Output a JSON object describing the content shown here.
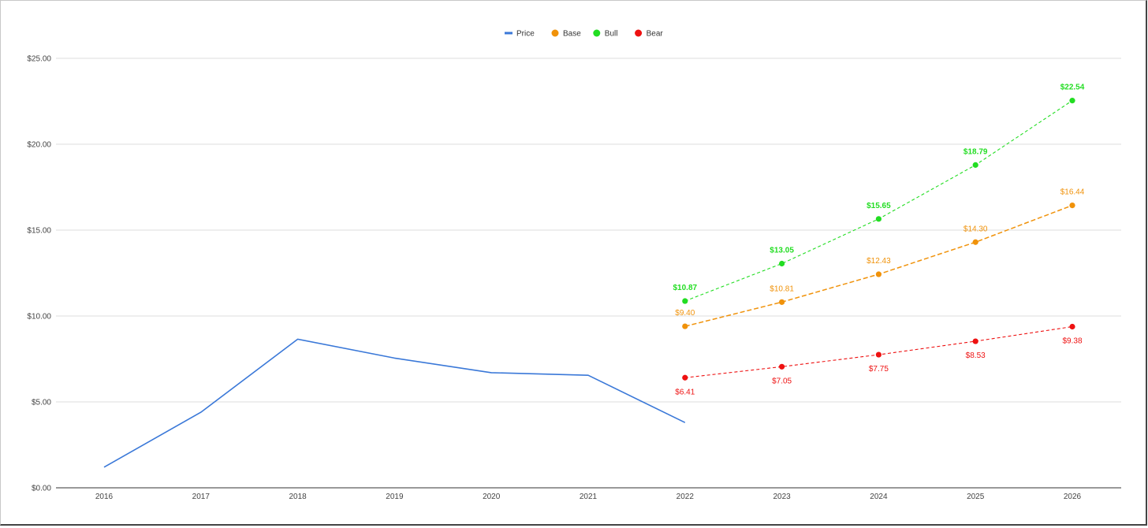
{
  "chart_data": {
    "type": "line",
    "title": "",
    "xlabel": "",
    "ylabel": "",
    "categories": [
      "2016",
      "2017",
      "2018",
      "2019",
      "2020",
      "2021",
      "2022",
      "2023",
      "2024",
      "2025",
      "2026"
    ],
    "ylim": [
      0,
      25
    ],
    "yticks": [
      0,
      5,
      10,
      15,
      20,
      25
    ],
    "ytick_labels": [
      "$0.00",
      "$5.00",
      "$10.00",
      "$15.00",
      "$20.00",
      "$25.00"
    ],
    "grid": true,
    "legend_position": "top-center",
    "series": [
      {
        "name": "Price",
        "color": "#3a78d8",
        "style": "solid",
        "marker": false,
        "show_labels": false,
        "values": [
          1.2,
          4.4,
          8.65,
          7.55,
          6.7,
          6.55,
          3.8,
          null,
          null,
          null,
          null
        ]
      },
      {
        "name": "Base",
        "color": "#f0920a",
        "style": "dashed",
        "marker": true,
        "show_labels": true,
        "label_position": "above",
        "label_weight": "normal",
        "values": [
          null,
          null,
          null,
          null,
          null,
          null,
          9.4,
          10.81,
          12.43,
          14.3,
          16.44
        ],
        "labels": [
          "",
          "",
          "",
          "",
          "",
          "",
          "$9.40",
          "$10.81",
          "$12.43",
          "$14.30",
          "$16.44"
        ]
      },
      {
        "name": "Bull",
        "color": "#22dd22",
        "style": "dashed",
        "marker": true,
        "show_labels": true,
        "label_position": "above",
        "label_weight": "bold",
        "values": [
          null,
          null,
          null,
          null,
          null,
          null,
          10.87,
          13.05,
          15.65,
          18.79,
          22.54
        ],
        "labels": [
          "",
          "",
          "",
          "",
          "",
          "",
          "$10.87",
          "$13.05",
          "$15.65",
          "$18.79",
          "$22.54"
        ]
      },
      {
        "name": "Bear",
        "color": "#ee1111",
        "style": "dashed",
        "marker": true,
        "show_labels": true,
        "label_position": "below",
        "label_weight": "normal",
        "values": [
          null,
          null,
          null,
          null,
          null,
          null,
          6.41,
          7.05,
          7.75,
          8.53,
          9.38
        ],
        "labels": [
          "",
          "",
          "",
          "",
          "",
          "",
          "$6.41",
          "$7.05",
          "$7.75",
          "$8.53",
          "$9.38"
        ]
      }
    ]
  }
}
